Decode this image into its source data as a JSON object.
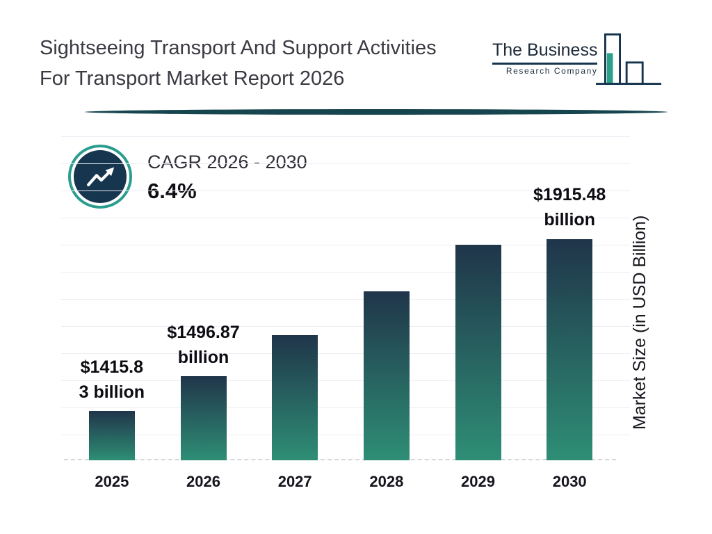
{
  "header": {
    "title": "Sightseeing Transport And Support Activities For Transport Market Report 2026",
    "logo": {
      "line1": "The Business",
      "line2": "Research Company"
    }
  },
  "cagr": {
    "label": "CAGR 2026 - 2030",
    "value": "6.4%"
  },
  "chart_data": {
    "type": "bar",
    "title": "Sightseeing Transport And Support Activities For Transport Market Report 2026",
    "categories": [
      "2025",
      "2026",
      "2027",
      "2028",
      "2029",
      "2030"
    ],
    "values": [
      1415.83,
      1496.87,
      1592.67,
      1694.6,
      1803.05,
      1915.48
    ],
    "bar_label_lines": [
      [
        "$1415.8",
        "3 billion"
      ],
      [
        "$1496.87",
        "billion"
      ],
      [],
      [],
      [],
      [
        "$1915.48",
        "billion"
      ]
    ],
    "labeled_values": {
      "2025": "$1415.83 billion",
      "2026": "$1496.87 billion",
      "2030": "$1915.48 billion"
    },
    "xlabel": "",
    "ylabel": "Market Size (in USD Billion)",
    "ylim": [
      1300,
      1950
    ],
    "grid": true,
    "legend": false,
    "colors": {
      "bar_top": "#20354a",
      "bar_bottom": "#2e8e75",
      "accent_teal": "#2a9d8f",
      "dark_navy": "#16354e"
    }
  }
}
